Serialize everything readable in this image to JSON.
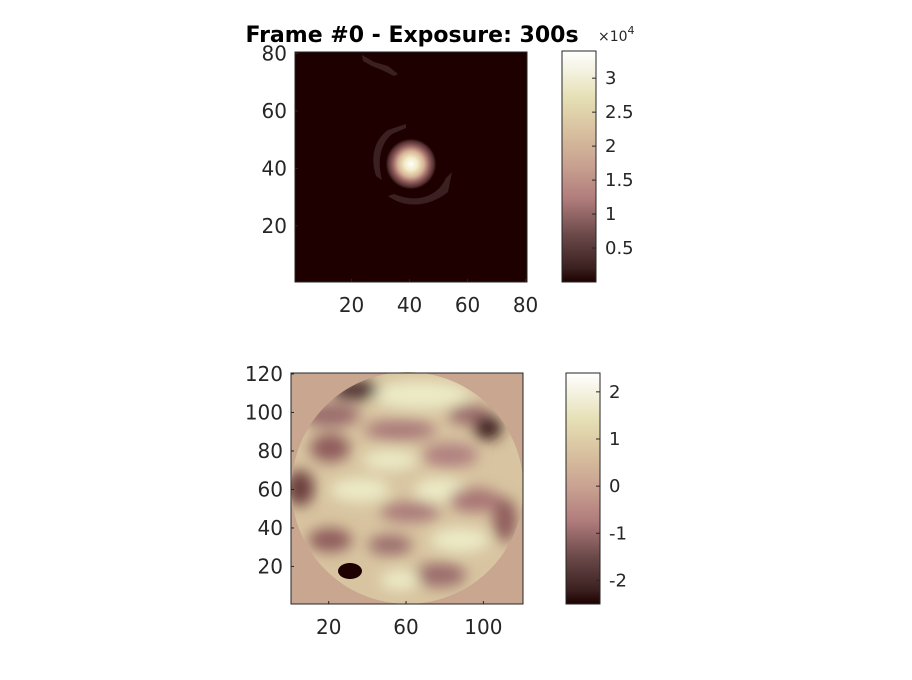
{
  "chart_data": [
    {
      "type": "heatmap",
      "title": "Frame #0 - Exposure: 300s",
      "description": "PSF frame image with bright central spot and faint arcs",
      "x_range": [
        1,
        80
      ],
      "y_range": [
        1,
        80
      ],
      "xticks": [
        20,
        40,
        60,
        80
      ],
      "yticks": [
        20,
        40,
        60,
        80
      ],
      "xtick_labels": [
        "20",
        "40",
        "60",
        "80"
      ],
      "ytick_labels": [
        "20",
        "40",
        "60",
        "80"
      ],
      "colormap": "pink",
      "colorbar": {
        "range": [
          0,
          34000
        ],
        "ticks": [
          5000,
          10000,
          15000,
          20000,
          25000,
          30000
        ],
        "tick_labels": [
          "0.5",
          "1",
          "1.5",
          "2",
          "2.5",
          "3"
        ],
        "exponent_base": "×10",
        "exponent_power": "4"
      },
      "features": {
        "peak_center": [
          40,
          41
        ],
        "peak_value": 34000,
        "arcs": "faint partial rings around center; small streak near top"
      }
    },
    {
      "type": "heatmap",
      "description": "Phase map within circular aperture",
      "x_range": [
        1,
        120
      ],
      "y_range": [
        1,
        120
      ],
      "xticks": [
        20,
        60,
        100
      ],
      "yticks": [
        20,
        40,
        60,
        80,
        100,
        120
      ],
      "xtick_labels": [
        "20",
        "60",
        "100"
      ],
      "ytick_labels": [
        "20",
        "40",
        "60",
        "80",
        "100",
        "120"
      ],
      "colormap": "pink",
      "colorbar": {
        "range": [
          -2.5,
          2.4
        ],
        "ticks": [
          -2,
          -1,
          0,
          1,
          2
        ],
        "tick_labels": [
          "-2",
          "-1",
          "0",
          "1",
          "2"
        ]
      },
      "features": {
        "aperture_center": [
          60.5,
          60.5
        ],
        "aperture_radius": 60,
        "outside_value": 0,
        "min_spot": [
          32,
          18
        ],
        "dark_spot_right": [
          102,
          90
        ]
      }
    }
  ]
}
